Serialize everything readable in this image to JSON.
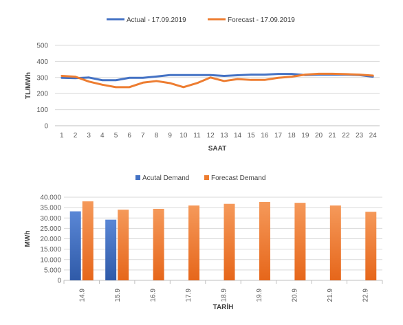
{
  "chart_data": [
    {
      "type": "line",
      "title": "",
      "xlabel": "SAAT",
      "ylabel": "TL/MWh",
      "ylim": [
        0,
        500
      ],
      "yticks": [
        "0",
        "100",
        "200",
        "300",
        "400",
        "500"
      ],
      "categories": [
        "1",
        "2",
        "3",
        "4",
        "5",
        "6",
        "7",
        "8",
        "9",
        "10",
        "11",
        "12",
        "13",
        "14",
        "15",
        "16",
        "17",
        "18",
        "19",
        "20",
        "21",
        "22",
        "23",
        "24"
      ],
      "grid": true,
      "legend_position": "top",
      "series": [
        {
          "name": "Actual - 17.09.2019",
          "color": "#4472C4",
          "values": [
            298,
            296,
            300,
            283,
            283,
            298,
            298,
            306,
            315,
            315,
            315,
            315,
            310,
            314,
            318,
            318,
            322,
            322,
            315,
            318,
            318,
            318,
            315,
            305
          ]
        },
        {
          "name": "Forecast - 17.09.2019",
          "color": "#ED7D31",
          "values": [
            310,
            305,
            275,
            255,
            240,
            240,
            268,
            278,
            265,
            240,
            265,
            300,
            278,
            290,
            285,
            285,
            298,
            305,
            318,
            323,
            323,
            321,
            318,
            312
          ]
        }
      ]
    },
    {
      "type": "bar",
      "title": "",
      "xlabel": "TARİH",
      "ylabel": "MWh",
      "ylim": [
        0,
        40000
      ],
      "yticks": [
        "0",
        "5.000",
        "10.000",
        "15.000",
        "20.000",
        "25.000",
        "30.000",
        "35.000",
        "40.000"
      ],
      "categories": [
        "14.9",
        "15.9",
        "16.9",
        "17.9",
        "18.9",
        "19.9",
        "20.9",
        "21.9",
        "22.9"
      ],
      "grid": true,
      "legend_position": "top",
      "series": [
        {
          "name": "Acutal Demand",
          "color": "#4472C4",
          "values": [
            33200,
            29200,
            null,
            null,
            null,
            null,
            null,
            null,
            null
          ]
        },
        {
          "name": "Forecast Demand",
          "color": "#ED7D31",
          "values": [
            38000,
            34000,
            34400,
            36000,
            36800,
            37700,
            37300,
            36000,
            33000
          ]
        }
      ]
    }
  ]
}
